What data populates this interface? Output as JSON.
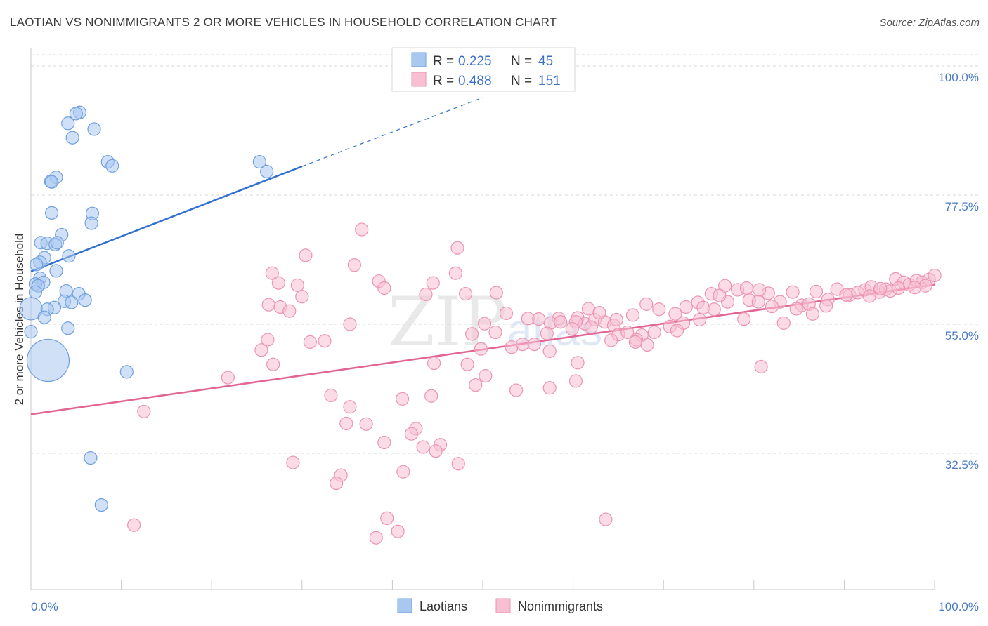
{
  "title": "LAOTIAN VS NONIMMIGRANTS 2 OR MORE VEHICLES IN HOUSEHOLD CORRELATION CHART",
  "source": "Source: ZipAtlas.com",
  "watermark": {
    "zip": "ZIP",
    "atlas": "atlas"
  },
  "chart_data": {
    "type": "scatter",
    "ylabel": "2 or more Vehicles in Household",
    "xlim": [
      0,
      100
    ],
    "ylim": [
      10,
      102
    ],
    "x_tick_labels": [
      {
        "value": 0,
        "label": "0.0%"
      },
      {
        "value": 100,
        "label": "100.0%"
      }
    ],
    "x_minor_ticks": [
      0,
      10,
      20,
      30,
      40,
      50,
      60,
      70,
      80,
      90,
      100
    ],
    "y_ticks": [
      {
        "value": 100,
        "label": "100.0%"
      },
      {
        "value": 77.5,
        "label": "77.5%"
      },
      {
        "value": 55,
        "label": "55.0%"
      },
      {
        "value": 32.5,
        "label": "32.5%"
      }
    ],
    "grid": true,
    "legend_placement": "top-center",
    "colors": {
      "laotians_fill": "#a9c8f0",
      "laotians_stroke": "#6f9fe0",
      "laotians_line": "#2e6fd0",
      "nonimm_fill": "#f7bfd1",
      "nonimm_stroke": "#eb94b1",
      "nonimm_line": "#e26594",
      "grid": "#d9d9d9",
      "tick_text": "#4a7ac8"
    },
    "legend": [
      {
        "series": "Laotians",
        "r_label": "R =",
        "r": "0.225",
        "n_label": "N =",
        "n": "45"
      },
      {
        "series": "Nonimmigrants",
        "r_label": "R =",
        "r": "0.488",
        "n_label": "N =",
        "n": "151"
      }
    ],
    "series": [
      {
        "name": "Laotians",
        "trend": {
          "x0": 0,
          "y0": 64.2,
          "x1": 30,
          "y1": 82.5,
          "dash_to_x": 50,
          "dash_to_y": 94.5
        },
        "points": [
          [
            5.4,
            91.9
          ],
          [
            5.0,
            91.7
          ],
          [
            4.1,
            90.0
          ],
          [
            7.0,
            89.0
          ],
          [
            4.6,
            87.5
          ],
          [
            8.5,
            83.3
          ],
          [
            9.0,
            82.6
          ],
          [
            2.8,
            80.6
          ],
          [
            2.2,
            79.9
          ],
          [
            2.3,
            79.8
          ],
          [
            2.3,
            74.4
          ],
          [
            6.8,
            74.3
          ],
          [
            6.7,
            72.6
          ],
          [
            3.4,
            70.6
          ],
          [
            1.1,
            69.2
          ],
          [
            1.8,
            69.1
          ],
          [
            2.7,
            68.9
          ],
          [
            2.9,
            69.2
          ],
          [
            4.2,
            66.9
          ],
          [
            1.5,
            66.6
          ],
          [
            1.0,
            65.8
          ],
          [
            0.6,
            65.4
          ],
          [
            2.8,
            64.3
          ],
          [
            1.0,
            63.0
          ],
          [
            1.4,
            62.3
          ],
          [
            0.5,
            62.0
          ],
          [
            0.8,
            61.7
          ],
          [
            0.5,
            60.6
          ],
          [
            3.9,
            60.8
          ],
          [
            5.3,
            60.3
          ],
          [
            3.7,
            59.0
          ],
          [
            4.5,
            58.8
          ],
          [
            6.0,
            59.2
          ],
          [
            2.6,
            57.9
          ],
          [
            1.8,
            57.6
          ],
          [
            0.0,
            57.7
          ],
          [
            1.5,
            56.2
          ],
          [
            4.1,
            54.3
          ],
          [
            0.0,
            53.7
          ],
          [
            1.9,
            48.7
          ],
          [
            10.6,
            46.7
          ],
          [
            25.3,
            83.3
          ],
          [
            26.1,
            81.6
          ],
          [
            6.6,
            31.7
          ],
          [
            7.8,
            23.5
          ]
        ],
        "sizes": {
          "39": 30,
          "35": 16
        }
      },
      {
        "name": "Nonimmigrants",
        "trend": {
          "x0": 0,
          "y0": 39.3,
          "x1": 100,
          "y1": 61.9
        },
        "points": [
          [
            36.6,
            71.5
          ],
          [
            30.4,
            67.0
          ],
          [
            47.2,
            68.3
          ],
          [
            35.8,
            65.3
          ],
          [
            26.7,
            63.9
          ],
          [
            47.0,
            63.9
          ],
          [
            38.5,
            62.5
          ],
          [
            44.5,
            62.2
          ],
          [
            27.4,
            62.2
          ],
          [
            29.5,
            61.8
          ],
          [
            39.1,
            61.3
          ],
          [
            48.1,
            60.3
          ],
          [
            51.5,
            60.5
          ],
          [
            43.7,
            60.2
          ],
          [
            30.0,
            59.8
          ],
          [
            26.3,
            58.4
          ],
          [
            27.6,
            58.0
          ],
          [
            28.6,
            57.3
          ],
          [
            35.3,
            55.0
          ],
          [
            52.6,
            56.9
          ],
          [
            55.0,
            56.0
          ],
          [
            56.2,
            55.9
          ],
          [
            58.4,
            56.0
          ],
          [
            57.5,
            55.2
          ],
          [
            58.6,
            55.4
          ],
          [
            60.5,
            56.1
          ],
          [
            61.3,
            55.1
          ],
          [
            62.4,
            55.8
          ],
          [
            63.5,
            55.4
          ],
          [
            62.0,
            54.5
          ],
          [
            50.2,
            55.1
          ],
          [
            51.4,
            53.6
          ],
          [
            53.2,
            51.0
          ],
          [
            54.4,
            51.5
          ],
          [
            55.7,
            51.5
          ],
          [
            57.4,
            50.3
          ],
          [
            60.3,
            55.4
          ],
          [
            57.1,
            53.4
          ],
          [
            59.9,
            54.2
          ],
          [
            64.5,
            54.8
          ],
          [
            65.0,
            53.2
          ],
          [
            67.6,
            53.1
          ],
          [
            67.0,
            52.3
          ],
          [
            48.8,
            53.3
          ],
          [
            49.8,
            50.7
          ],
          [
            44.6,
            48.2
          ],
          [
            48.3,
            48.0
          ],
          [
            50.3,
            46.0
          ],
          [
            49.2,
            44.4
          ],
          [
            53.7,
            43.5
          ],
          [
            57.4,
            43.9
          ],
          [
            60.5,
            48.3
          ],
          [
            60.3,
            45.1
          ],
          [
            25.5,
            50.5
          ],
          [
            26.2,
            52.3
          ],
          [
            26.8,
            48.0
          ],
          [
            30.9,
            51.9
          ],
          [
            32.5,
            52.1
          ],
          [
            21.8,
            45.7
          ],
          [
            12.5,
            39.8
          ],
          [
            33.2,
            42.6
          ],
          [
            35.3,
            40.6
          ],
          [
            34.9,
            37.7
          ],
          [
            37.1,
            37.6
          ],
          [
            39.1,
            34.4
          ],
          [
            41.1,
            42.0
          ],
          [
            42.6,
            36.8
          ],
          [
            42.1,
            35.9
          ],
          [
            44.3,
            42.5
          ],
          [
            43.4,
            33.6
          ],
          [
            45.3,
            34.0
          ],
          [
            44.8,
            32.9
          ],
          [
            29.0,
            30.9
          ],
          [
            47.3,
            30.7
          ],
          [
            34.3,
            28.7
          ],
          [
            33.8,
            27.3
          ],
          [
            41.2,
            29.3
          ],
          [
            39.4,
            21.2
          ],
          [
            38.2,
            17.8
          ],
          [
            40.6,
            18.9
          ],
          [
            11.4,
            20.0
          ],
          [
            63.6,
            21.0
          ],
          [
            66.6,
            56.6
          ],
          [
            68.1,
            58.5
          ],
          [
            69.5,
            57.6
          ],
          [
            71.3,
            56.8
          ],
          [
            72.5,
            58.0
          ],
          [
            73.8,
            58.8
          ],
          [
            75.3,
            60.3
          ],
          [
            74.4,
            57.9
          ],
          [
            76.8,
            61.7
          ],
          [
            78.2,
            61.0
          ],
          [
            79.5,
            59.2
          ],
          [
            80.5,
            58.9
          ],
          [
            81.6,
            60.4
          ],
          [
            82.9,
            58.9
          ],
          [
            84.3,
            60.6
          ],
          [
            85.3,
            58.3
          ],
          [
            86.1,
            58.5
          ],
          [
            86.9,
            60.7
          ],
          [
            88.2,
            59.3
          ],
          [
            89.2,
            61.1
          ],
          [
            90.6,
            60.1
          ],
          [
            91.5,
            60.5
          ],
          [
            92.3,
            61.0
          ],
          [
            93.0,
            61.5
          ],
          [
            93.9,
            60.6
          ],
          [
            94.6,
            61.1
          ],
          [
            95.1,
            60.8
          ],
          [
            95.7,
            62.9
          ],
          [
            96.6,
            62.3
          ],
          [
            97.2,
            61.9
          ],
          [
            98.0,
            62.6
          ],
          [
            98.6,
            62.3
          ],
          [
            99.4,
            62.8
          ],
          [
            100.0,
            63.5
          ],
          [
            99.0,
            61.7
          ],
          [
            97.8,
            61.4
          ],
          [
            96.0,
            61.3
          ],
          [
            94.0,
            61.2
          ],
          [
            92.8,
            59.9
          ],
          [
            90.2,
            60.1
          ],
          [
            88.0,
            58.2
          ],
          [
            86.5,
            56.8
          ],
          [
            84.7,
            57.7
          ],
          [
            83.3,
            55.2
          ],
          [
            82.0,
            58.1
          ],
          [
            80.6,
            61.0
          ],
          [
            78.9,
            55.9
          ],
          [
            77.1,
            58.9
          ],
          [
            75.6,
            57.6
          ],
          [
            74.0,
            55.8
          ],
          [
            72.2,
            55.2
          ],
          [
            70.7,
            54.6
          ],
          [
            69.0,
            53.6
          ],
          [
            68.2,
            51.4
          ],
          [
            66.0,
            53.6
          ],
          [
            64.2,
            52.2
          ],
          [
            61.7,
            57.7
          ],
          [
            62.9,
            57.0
          ],
          [
            64.8,
            55.8
          ],
          [
            66.9,
            51.9
          ],
          [
            71.5,
            53.9
          ],
          [
            76.2,
            60.0
          ],
          [
            79.2,
            61.3
          ],
          [
            80.8,
            47.6
          ]
        ]
      }
    ]
  }
}
